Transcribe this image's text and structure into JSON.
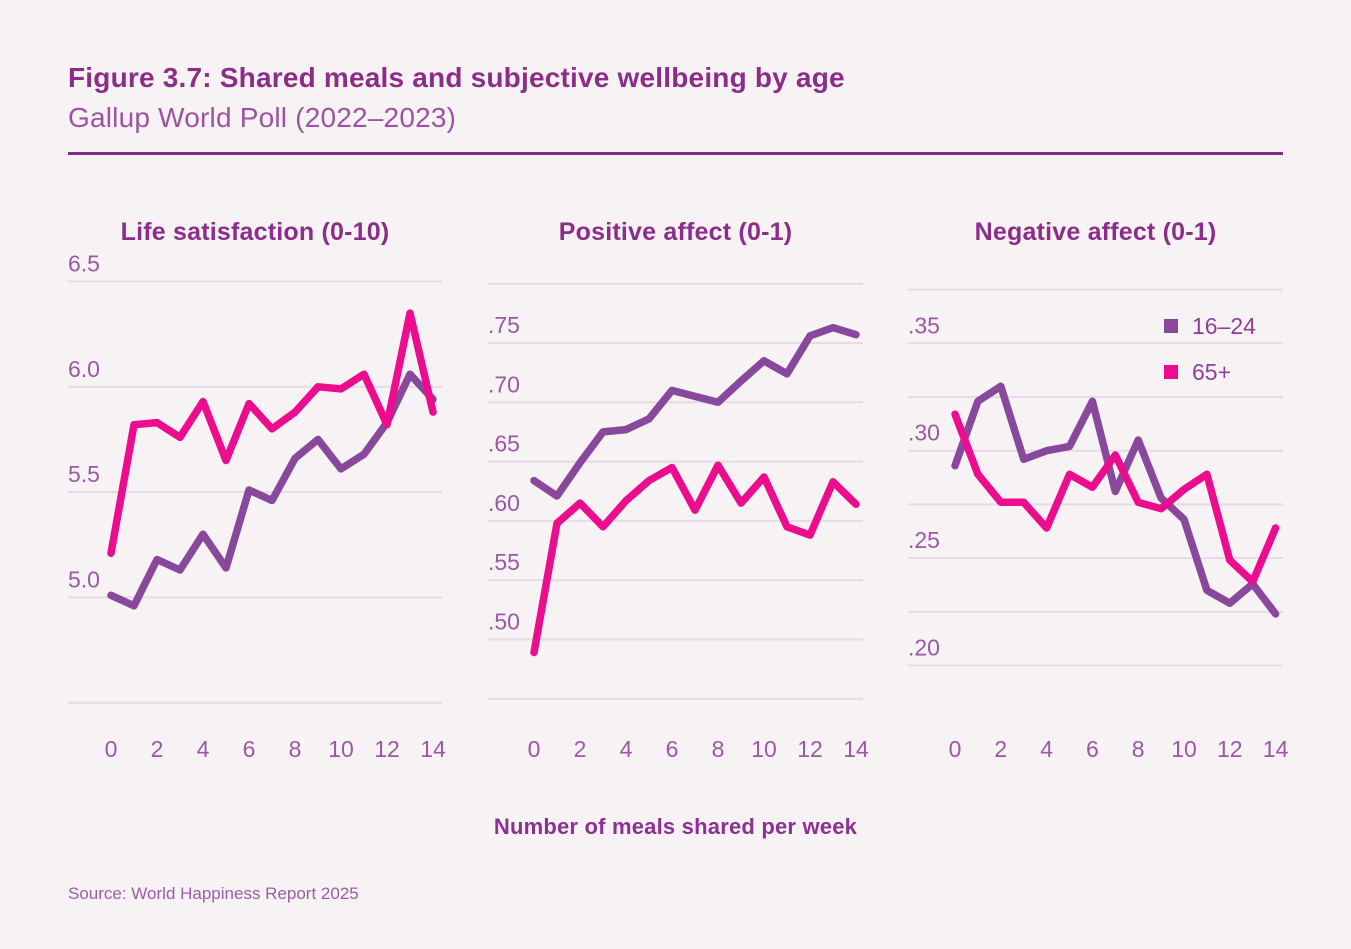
{
  "header": {
    "title": "Figure 3.7: Shared meals and subjective wellbeing by age",
    "subtitle": "Gallup World Poll (2022–2023)"
  },
  "axis": {
    "xlabel": "Number of meals shared per week",
    "xticks": [
      0,
      2,
      4,
      6,
      8,
      10,
      12,
      14
    ]
  },
  "legend": {
    "position": "top-right-of-third-chart",
    "entries": [
      {
        "label": "16–24",
        "color_key": "series_16_24"
      },
      {
        "label": "65+",
        "color_key": "series_65plus"
      }
    ]
  },
  "source": "Source: World Happiness Report 2025",
  "colors": {
    "background": "#F7F3F5",
    "title": "#8C2D89",
    "subtitle": "#9D53A1",
    "divider": "#822C87",
    "axis": "#9D58A4",
    "grid": "#E6DBE4",
    "legend": "#8F3F9B",
    "xlabel": "#8D3093",
    "source": "#9E5BA6",
    "series_16_24": "#88489B",
    "series_65plus": "#EC0D8E"
  },
  "chart_data": [
    {
      "type": "line",
      "title": "Life satisfaction (0-10)",
      "x": [
        0,
        1,
        2,
        3,
        4,
        5,
        6,
        7,
        8,
        9,
        10,
        11,
        12,
        13,
        14
      ],
      "ylim": [
        4.5,
        6.5
      ],
      "grid_values": [
        6.5,
        6.0,
        5.5,
        5.0,
        4.5
      ],
      "ytick_values": [
        6.5,
        6.0,
        5.5,
        5.0
      ],
      "ytick_labels": [
        "6.5",
        "6.0",
        "5.5",
        "5.0"
      ],
      "series": [
        {
          "name": "16–24",
          "values": [
            5.01,
            4.96,
            5.18,
            5.13,
            5.3,
            5.14,
            5.51,
            5.46,
            5.66,
            5.75,
            5.61,
            5.68,
            5.83,
            6.06,
            5.94
          ]
        },
        {
          "name": "65+",
          "values": [
            5.21,
            5.82,
            5.83,
            5.76,
            5.93,
            5.65,
            5.92,
            5.8,
            5.88,
            6.0,
            5.99,
            6.06,
            5.82,
            6.35,
            5.88
          ]
        }
      ]
    },
    {
      "type": "line",
      "title": "Positive affect (0-1)",
      "x": [
        0,
        1,
        2,
        3,
        4,
        5,
        6,
        7,
        8,
        9,
        10,
        11,
        12,
        13,
        14
      ],
      "ylim": [
        0.45,
        0.8
      ],
      "grid_values": [
        0.8,
        0.75,
        0.7,
        0.65,
        0.6,
        0.55,
        0.5,
        0.45
      ],
      "ytick_values": [
        0.75,
        0.7,
        0.65,
        0.6,
        0.55,
        0.5
      ],
      "ytick_labels": [
        ".75",
        ".70",
        ".65",
        ".60",
        ".55",
        ".50"
      ],
      "series": [
        {
          "name": "16–24",
          "values": [
            0.634,
            0.621,
            0.649,
            0.675,
            0.677,
            0.686,
            0.71,
            0.705,
            0.7,
            0.718,
            0.735,
            0.724,
            0.756,
            0.763,
            0.757
          ]
        },
        {
          "name": "65+",
          "values": [
            0.489,
            0.598,
            0.615,
            0.595,
            0.617,
            0.634,
            0.645,
            0.609,
            0.647,
            0.615,
            0.637,
            0.595,
            0.588,
            0.633,
            0.614
          ]
        }
      ]
    },
    {
      "type": "line",
      "title": "Negative affect (0-1)",
      "x": [
        0,
        1,
        2,
        3,
        4,
        5,
        6,
        7,
        8,
        9,
        10,
        11,
        12,
        13,
        14
      ],
      "ylim": [
        0.2,
        0.375
      ],
      "grid_values": [
        0.375,
        0.35,
        0.325,
        0.3,
        0.275,
        0.25,
        0.225,
        0.2
      ],
      "ytick_values": [
        0.35,
        0.3,
        0.25,
        0.2
      ],
      "ytick_labels": [
        ".35",
        ".30",
        ".25",
        ".20"
      ],
      "series": [
        {
          "name": "16–24",
          "values": [
            0.293,
            0.323,
            0.33,
            0.296,
            0.3,
            0.302,
            0.323,
            0.281,
            0.305,
            0.278,
            0.268,
            0.235,
            0.229,
            0.238,
            0.224
          ]
        },
        {
          "name": "65+",
          "values": [
            0.317,
            0.289,
            0.276,
            0.276,
            0.264,
            0.289,
            0.283,
            0.298,
            0.276,
            0.273,
            0.282,
            0.289,
            0.249,
            0.239,
            0.264
          ]
        }
      ]
    }
  ]
}
